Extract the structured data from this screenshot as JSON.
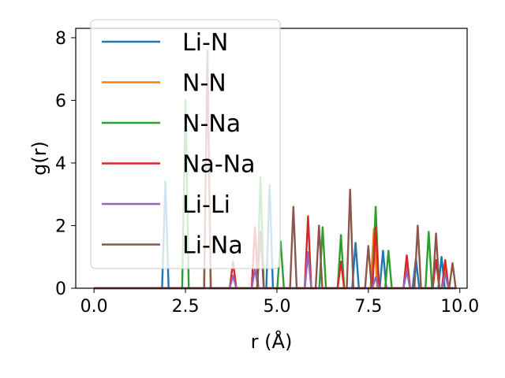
{
  "chart_data": {
    "type": "line",
    "title": "",
    "xlabel": "r (Å)",
    "ylabel": "g(r)",
    "xlim": [
      -0.5,
      10.2
    ],
    "ylim": [
      0,
      8.3
    ],
    "xticks": [
      "0.0",
      "2.5",
      "5.0",
      "7.5",
      "10.0"
    ],
    "xtick_values": [
      0.0,
      2.5,
      5.0,
      7.5,
      10.0
    ],
    "yticks": [
      "0",
      "2",
      "4",
      "6",
      "8"
    ],
    "ytick_values": [
      0,
      2,
      4,
      6,
      8
    ],
    "grid": false,
    "legend_position": "top-left",
    "series": [
      {
        "name": "Li-N",
        "color": "#1f77b4",
        "peaks": [
          [
            1.95,
            3.4
          ],
          [
            4.8,
            3.3
          ],
          [
            7.15,
            1.45
          ],
          [
            7.9,
            1.2
          ],
          [
            8.8,
            0.95
          ],
          [
            9.5,
            1.0
          ]
        ]
      },
      {
        "name": "N-N",
        "color": "#ff7f0e",
        "peaks": [
          [
            3.1,
            7.5
          ],
          [
            5.85,
            1.15
          ],
          [
            7.65,
            1.9
          ],
          [
            8.55,
            0.8
          ],
          [
            9.6,
            0.7
          ]
        ]
      },
      {
        "name": "N-Na",
        "color": "#2ca02c",
        "peaks": [
          [
            2.5,
            6.0
          ],
          [
            4.55,
            3.55
          ],
          [
            5.1,
            1.5
          ],
          [
            6.25,
            1.95
          ],
          [
            6.75,
            1.7
          ],
          [
            7.7,
            2.6
          ],
          [
            8.05,
            1.2
          ],
          [
            9.15,
            1.8
          ]
        ]
      },
      {
        "name": "Na-Na",
        "color": "#d62728",
        "peaks": [
          [
            3.8,
            0.85
          ],
          [
            4.4,
            1.95
          ],
          [
            5.85,
            2.3
          ],
          [
            6.75,
            0.85
          ],
          [
            7.7,
            1.95
          ],
          [
            8.55,
            1.05
          ],
          [
            9.35,
            0.9
          ],
          [
            9.6,
            0.9
          ]
        ]
      },
      {
        "name": "Li-Li",
        "color": "#9467bd",
        "peaks": [
          [
            3.8,
            0.4
          ],
          [
            4.4,
            0.6
          ],
          [
            5.85,
            1.15
          ],
          [
            7.7,
            0.35
          ],
          [
            8.55,
            0.55
          ],
          [
            9.6,
            0.45
          ]
        ]
      },
      {
        "name": "Li-Na",
        "color": "#8c564b",
        "peaks": [
          [
            3.1,
            7.6
          ],
          [
            4.55,
            1.8
          ],
          [
            5.45,
            2.6
          ],
          [
            6.15,
            2.0
          ],
          [
            7.0,
            3.15
          ],
          [
            7.5,
            1.35
          ],
          [
            8.85,
            2.0
          ],
          [
            9.35,
            1.75
          ],
          [
            9.8,
            0.8
          ]
        ]
      }
    ]
  }
}
